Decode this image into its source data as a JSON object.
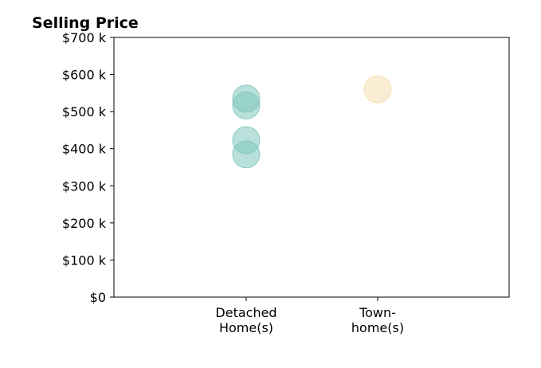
{
  "chart_data": {
    "type": "scatter",
    "title": "Selling Price",
    "xlabel": "",
    "ylabel": "",
    "ylim": [
      0,
      700000
    ],
    "yticks": [
      {
        "value": 0,
        "label": "$0"
      },
      {
        "value": 100000,
        "label": "$100 k"
      },
      {
        "value": 200000,
        "label": "$200 k"
      },
      {
        "value": 300000,
        "label": "$300 k"
      },
      {
        "value": 400000,
        "label": "$400 k"
      },
      {
        "value": 500000,
        "label": "$500 k"
      },
      {
        "value": 600000,
        "label": "$600 k"
      },
      {
        "value": 700000,
        "label": "$700 k"
      }
    ],
    "categories": [
      {
        "label_lines": [
          "Detached",
          "Home(s)"
        ]
      },
      {
        "label_lines": [
          "Town-",
          "home(s)"
        ]
      }
    ],
    "grid": false,
    "series": [
      {
        "category_index": 0,
        "color": "#7fc7bb",
        "values": [
          535000,
          517000,
          423000,
          385000
        ]
      },
      {
        "category_index": 1,
        "color": "#f6dfb0",
        "values": [
          560000
        ]
      }
    ]
  }
}
